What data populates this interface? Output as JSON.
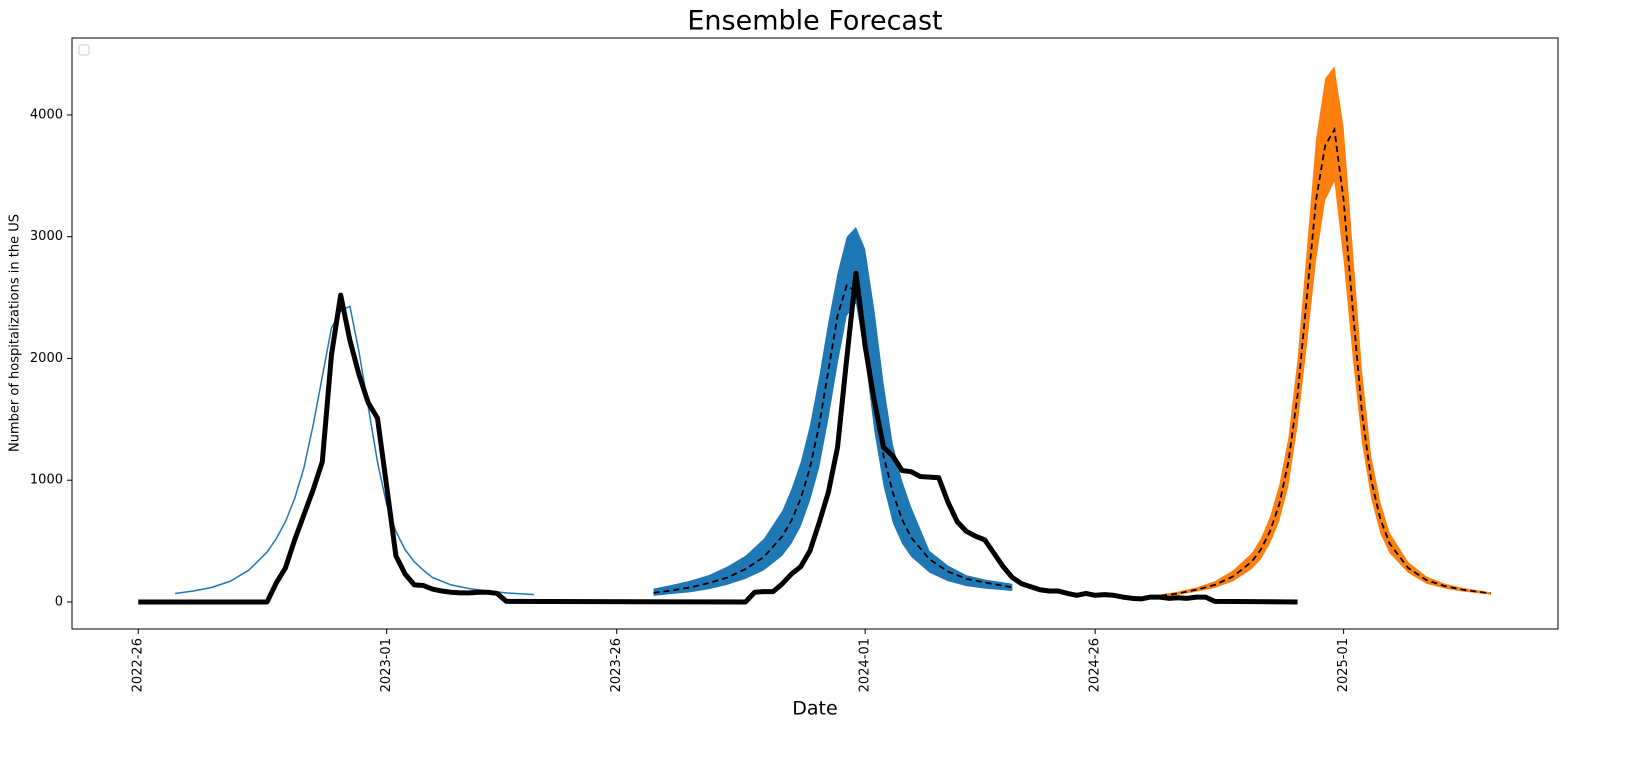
{
  "chart_data": {
    "type": "line",
    "title": "Ensemble Forecast",
    "xlabel": "Date",
    "ylabel": "Number of hospitalizations in the US",
    "xlim": [
      -7.2,
      154.3
    ],
    "ylim": [
      -222,
      4632
    ],
    "xticks": [
      {
        "value": 0,
        "label": "2022-26"
      },
      {
        "value": 27,
        "label": "2023-01"
      },
      {
        "value": 52,
        "label": "2023-26"
      },
      {
        "value": 79,
        "label": "2024-01"
      },
      {
        "value": 104,
        "label": "2024-26"
      },
      {
        "value": 131,
        "label": "2025-01"
      }
    ],
    "yticks": [
      0,
      1000,
      2000,
      3000,
      4000
    ],
    "grid": false,
    "legend": "upper left",
    "bands": [
      {
        "color": "#1f77b4",
        "median_color": "#000000",
        "x": [
          56,
          58,
          60,
          62,
          64,
          66,
          68,
          70,
          71,
          72,
          73,
          74,
          75,
          76,
          77,
          78,
          79,
          80,
          81,
          82,
          83,
          84,
          86,
          88,
          90,
          92,
          95
        ],
        "lower": [
          50,
          65,
          80,
          105,
          140,
          190,
          260,
          380,
          480,
          620,
          830,
          1100,
          1500,
          1950,
          2350,
          2450,
          2000,
          1400,
          950,
          650,
          480,
          370,
          240,
          170,
          130,
          110,
          90
        ],
        "median": [
          75,
          95,
          120,
          155,
          200,
          270,
          370,
          540,
          670,
          850,
          1100,
          1450,
          1900,
          2350,
          2600,
          2550,
          2150,
          1650,
          1200,
          900,
          680,
          530,
          350,
          250,
          190,
          160,
          120
        ],
        "upper": [
          110,
          140,
          175,
          220,
          290,
          380,
          520,
          750,
          930,
          1150,
          1450,
          1850,
          2300,
          2700,
          3000,
          3080,
          2900,
          2400,
          1800,
          1300,
          1000,
          780,
          420,
          300,
          220,
          185,
          150
        ]
      },
      {
        "color": "#ff7f0e",
        "median_color": "#000000",
        "x": [
          109,
          111,
          113,
          115,
          117,
          119,
          121,
          122,
          123,
          124,
          125,
          126,
          127,
          128,
          129,
          130,
          131,
          132,
          133,
          134,
          135,
          136,
          138,
          140,
          142,
          144,
          147
        ],
        "lower": [
          30,
          42,
          58,
          85,
          115,
          170,
          270,
          350,
          480,
          660,
          950,
          1450,
          2100,
          2800,
          3300,
          3450,
          2800,
          2000,
          1300,
          850,
          560,
          400,
          240,
          150,
          110,
          85,
          60
        ],
        "median": [
          35,
          50,
          70,
          100,
          140,
          210,
          330,
          430,
          580,
          800,
          1150,
          1700,
          2500,
          3300,
          3750,
          3880,
          3300,
          2400,
          1550,
          1000,
          680,
          480,
          280,
          180,
          130,
          100,
          70
        ],
        "upper": [
          40,
          60,
          85,
          120,
          170,
          260,
          400,
          520,
          700,
          960,
          1350,
          2000,
          2900,
          3800,
          4300,
          4400,
          3900,
          2900,
          1900,
          1200,
          820,
          570,
          330,
          210,
          150,
          115,
          80
        ]
      }
    ],
    "series": [
      {
        "color": "#1f77b4",
        "linewidth": 1.5,
        "x": [
          4,
          6,
          8,
          10,
          12,
          14,
          15,
          16,
          17,
          18,
          19,
          20,
          21,
          22,
          23,
          24,
          25,
          26,
          27,
          28,
          29,
          30,
          31,
          32,
          34,
          36,
          38,
          40,
          43
        ],
        "values": [
          70,
          90,
          120,
          170,
          260,
          410,
          520,
          660,
          850,
          1100,
          1450,
          1850,
          2250,
          2390,
          2430,
          2050,
          1600,
          1150,
          800,
          580,
          430,
          330,
          260,
          200,
          140,
          110,
          90,
          75,
          60
        ]
      },
      {
        "color": "#000000",
        "linewidth": 5,
        "x": [
          0,
          14,
          15,
          16,
          17,
          18,
          19,
          20,
          21,
          22,
          23,
          24,
          25,
          26,
          27,
          28,
          29,
          30,
          31,
          32,
          33,
          34,
          35,
          36,
          37,
          38,
          39,
          40,
          66,
          67,
          68,
          69,
          70,
          71,
          72,
          73,
          74,
          75,
          76,
          77,
          78,
          79,
          80,
          81,
          82,
          83,
          84,
          85,
          86,
          87,
          88,
          89,
          90,
          91,
          92,
          93,
          94,
          95,
          96,
          97,
          98,
          99,
          100,
          101,
          102,
          103,
          104,
          105,
          106,
          107,
          108,
          109,
          110,
          111,
          112,
          113,
          114,
          115,
          116,
          117,
          126
        ],
        "values": [
          0,
          0,
          156,
          280,
          510,
          715,
          920,
          1150,
          2030,
          2520,
          2150,
          1865,
          1635,
          1510,
          950,
          380,
          230,
          140,
          135,
          105,
          90,
          80,
          75,
          75,
          80,
          80,
          70,
          5,
          0,
          80,
          85,
          85,
          150,
          230,
          290,
          420,
          650,
          900,
          1270,
          2000,
          2700,
          2100,
          1650,
          1270,
          1200,
          1080,
          1070,
          1030,
          1025,
          1020,
          820,
          660,
          580,
          540,
          510,
          400,
          290,
          200,
          150,
          125,
          100,
          90,
          90,
          70,
          55,
          70,
          55,
          60,
          55,
          40,
          30,
          25,
          40,
          40,
          30,
          35,
          30,
          40,
          40,
          5,
          0
        ]
      }
    ]
  }
}
